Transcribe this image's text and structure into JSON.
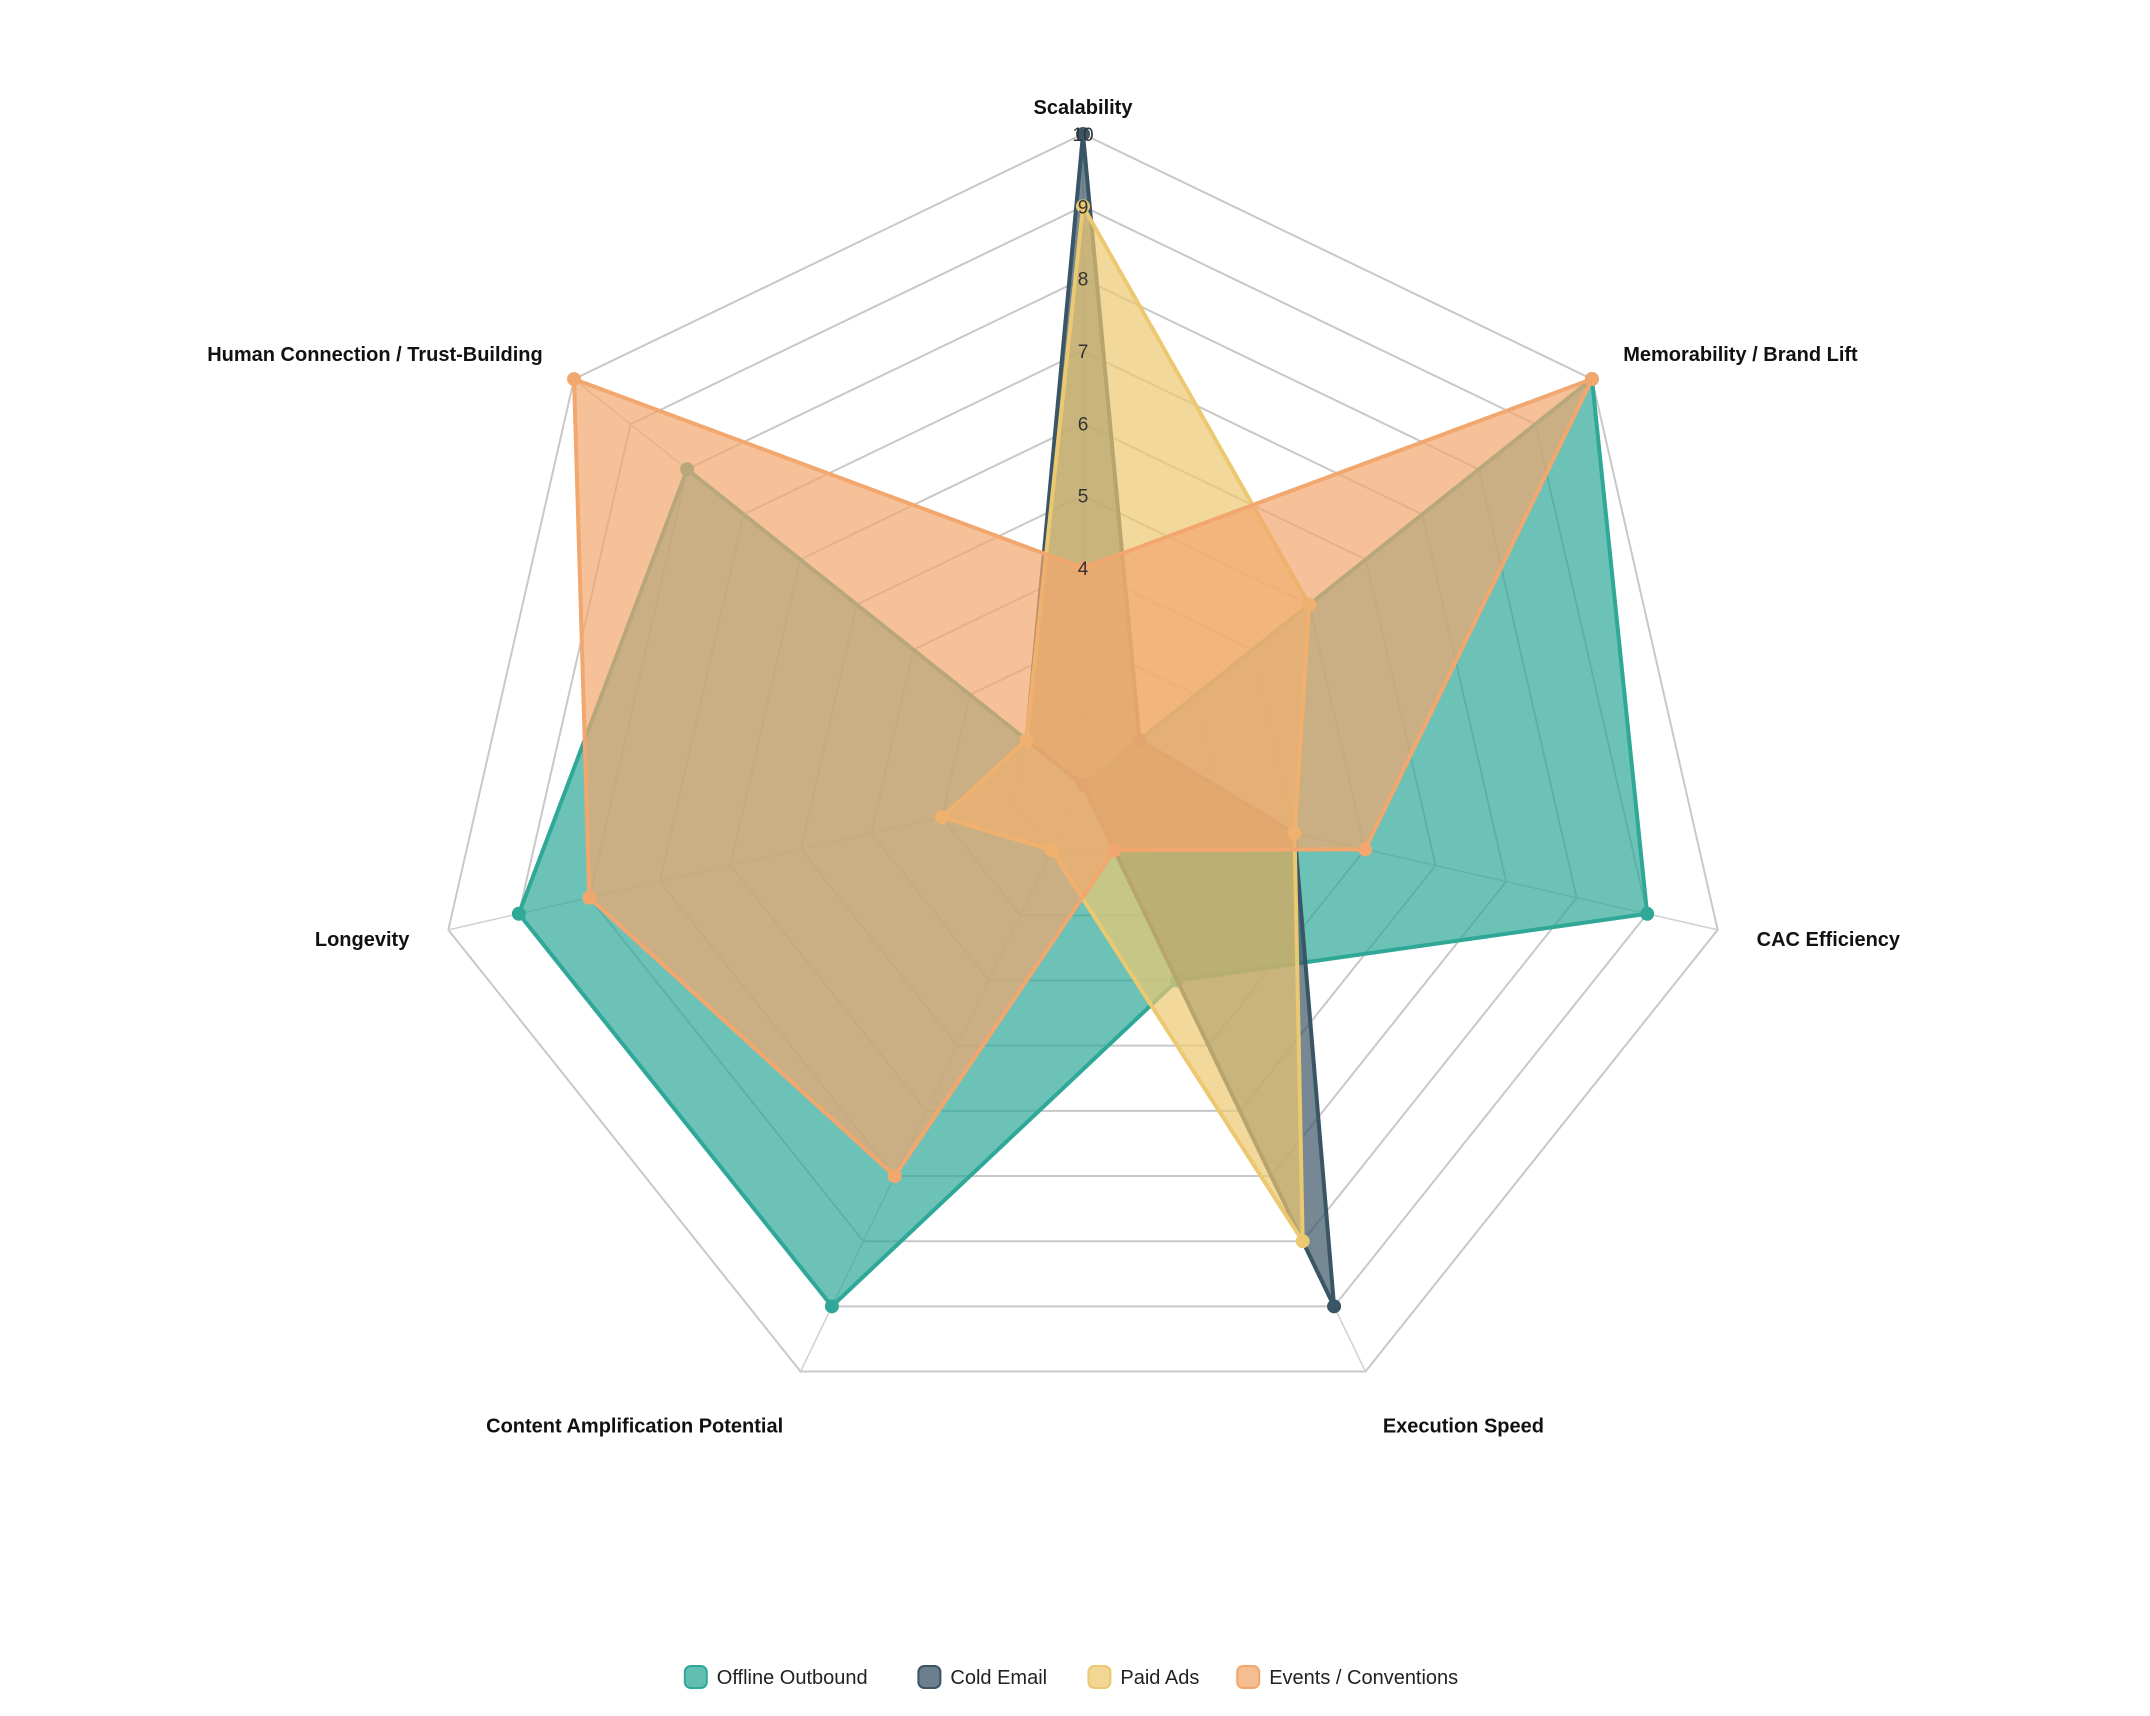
{
  "chart_data": {
    "type": "radar",
    "axes": [
      "Scalability",
      "Memorability / Brand Lift",
      "CAC Efficiency",
      "Execution Speed",
      "Content Amplification Potential",
      "Longevity",
      "Human Connection / Trust-Building"
    ],
    "range": [
      1,
      10
    ],
    "ticks": [
      4,
      5,
      6,
      7,
      8,
      9,
      10
    ],
    "series": [
      {
        "name": "Offline Outbound",
        "color": "#2fa898",
        "values": [
          1,
          10,
          9,
          4,
          9,
          9,
          8
        ]
      },
      {
        "name": "Cold Email",
        "color": "#3a5565",
        "values": [
          10,
          2,
          4,
          9,
          1,
          1,
          2
        ]
      },
      {
        "name": "Paid Ads",
        "color": "#ecc870",
        "values": [
          9,
          5,
          4,
          8,
          2,
          3,
          2
        ]
      },
      {
        "name": "Events / Conventions",
        "color": "#f2a76e",
        "values": [
          4,
          10,
          5,
          2,
          7,
          8,
          10
        ]
      }
    ],
    "legend_position": "bottom"
  }
}
